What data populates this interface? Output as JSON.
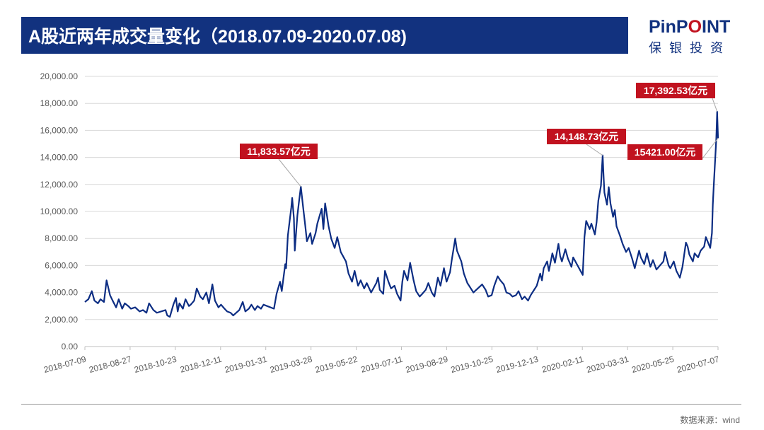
{
  "header": {
    "title": "A股近两年成交量变化（2018.07.09-2020.07.08)"
  },
  "logo": {
    "name": "PinPOINT",
    "subtitle": "保银投资",
    "color": "#12327f",
    "accent": "#c1121f"
  },
  "footer": {
    "source": "数据来源：wind"
  },
  "chart_data": {
    "type": "line",
    "title": "",
    "xlabel": "",
    "ylabel": "",
    "x_range": [
      "2018-07-09",
      "2020-07-08"
    ],
    "ylim": [
      0,
      20000
    ],
    "y_ticks": [
      0,
      2000,
      4000,
      6000,
      8000,
      10000,
      12000,
      14000,
      16000,
      18000,
      20000
    ],
    "y_tick_labels": [
      "0.00",
      "2,000.00",
      "4,000.00",
      "6,000.00",
      "8,000.00",
      "10,000.00",
      "12,000.00",
      "14,000.00",
      "16,000.00",
      "18,000.00",
      "20,000.00"
    ],
    "x_tick_labels": [
      "2018-07-09",
      "2018-08-27",
      "2018-10-23",
      "2018-12-11",
      "2019-01-31",
      "2019-03-28",
      "2019-05-22",
      "2019-07-11",
      "2019-08-29",
      "2019-10-25",
      "2019-12-13",
      "2020-02-11",
      "2020-03-31",
      "2020-05-25",
      "2020-07-07"
    ],
    "grid": true,
    "legend": "none",
    "series": [
      {
        "color": "#0c2d83",
        "points": [
          [
            "2018-07-09",
            3300
          ],
          [
            "2018-07-13",
            3500
          ],
          [
            "2018-07-17",
            4100
          ],
          [
            "2018-07-20",
            3400
          ],
          [
            "2018-07-24",
            3200
          ],
          [
            "2018-07-27",
            3500
          ],
          [
            "2018-07-31",
            3300
          ],
          [
            "2018-08-03",
            4900
          ],
          [
            "2018-08-07",
            3800
          ],
          [
            "2018-08-10",
            3400
          ],
          [
            "2018-08-14",
            2900
          ],
          [
            "2018-08-17",
            3500
          ],
          [
            "2018-08-21",
            2800
          ],
          [
            "2018-08-24",
            3200
          ],
          [
            "2018-08-28",
            3000
          ],
          [
            "2018-08-31",
            2800
          ],
          [
            "2018-09-05",
            2900
          ],
          [
            "2018-09-10",
            2600
          ],
          [
            "2018-09-14",
            2700
          ],
          [
            "2018-09-18",
            2500
          ],
          [
            "2018-09-21",
            3200
          ],
          [
            "2018-09-26",
            2700
          ],
          [
            "2018-09-30",
            2500
          ],
          [
            "2018-10-10",
            2700
          ],
          [
            "2018-10-12",
            2300
          ],
          [
            "2018-10-15",
            2200
          ],
          [
            "2018-10-19",
            3100
          ],
          [
            "2018-10-22",
            3600
          ],
          [
            "2018-10-24",
            2600
          ],
          [
            "2018-10-26",
            3200
          ],
          [
            "2018-10-30",
            2800
          ],
          [
            "2018-11-02",
            3500
          ],
          [
            "2018-11-06",
            3000
          ],
          [
            "2018-11-08",
            3100
          ],
          [
            "2018-11-12",
            3400
          ],
          [
            "2018-11-15",
            4300
          ],
          [
            "2018-11-19",
            3700
          ],
          [
            "2018-11-22",
            3500
          ],
          [
            "2018-11-26",
            4000
          ],
          [
            "2018-11-29",
            3200
          ],
          [
            "2018-12-03",
            4600
          ],
          [
            "2018-12-06",
            3400
          ],
          [
            "2018-12-10",
            2900
          ],
          [
            "2018-12-13",
            3100
          ],
          [
            "2018-12-17",
            2800
          ],
          [
            "2018-12-20",
            2600
          ],
          [
            "2018-12-24",
            2500
          ],
          [
            "2018-12-27",
            2300
          ],
          [
            "2019-01-03",
            2700
          ],
          [
            "2019-01-07",
            3300
          ],
          [
            "2019-01-10",
            2600
          ],
          [
            "2019-01-14",
            2800
          ],
          [
            "2019-01-17",
            3100
          ],
          [
            "2019-01-21",
            2700
          ],
          [
            "2019-01-24",
            3000
          ],
          [
            "2019-01-28",
            2800
          ],
          [
            "2019-01-31",
            3100
          ],
          [
            "2019-02-12",
            2800
          ],
          [
            "2019-02-15",
            3900
          ],
          [
            "2019-02-19",
            4800
          ],
          [
            "2019-02-21",
            4100
          ],
          [
            "2019-02-25",
            6100
          ],
          [
            "2019-02-26",
            5800
          ],
          [
            "2019-02-28",
            8200
          ],
          [
            "2019-03-04",
            10300
          ],
          [
            "2019-03-05",
            11000
          ],
          [
            "2019-03-07",
            9500
          ],
          [
            "2019-03-08",
            7100
          ],
          [
            "2019-03-11",
            9700
          ],
          [
            "2019-03-13",
            10800
          ],
          [
            "2019-03-15",
            11834
          ],
          [
            "2019-03-18",
            10100
          ],
          [
            "2019-03-20",
            9000
          ],
          [
            "2019-03-22",
            7800
          ],
          [
            "2019-03-26",
            8400
          ],
          [
            "2019-03-28",
            7600
          ],
          [
            "2019-04-01",
            8400
          ],
          [
            "2019-04-03",
            9100
          ],
          [
            "2019-04-08",
            10200
          ],
          [
            "2019-04-10",
            8700
          ],
          [
            "2019-04-12",
            10600
          ],
          [
            "2019-04-16",
            8900
          ],
          [
            "2019-04-19",
            8000
          ],
          [
            "2019-04-23",
            7300
          ],
          [
            "2019-04-26",
            8100
          ],
          [
            "2019-04-30",
            7000
          ],
          [
            "2019-05-06",
            6300
          ],
          [
            "2019-05-09",
            5400
          ],
          [
            "2019-05-13",
            4800
          ],
          [
            "2019-05-16",
            5600
          ],
          [
            "2019-05-20",
            4500
          ],
          [
            "2019-05-23",
            4900
          ],
          [
            "2019-05-27",
            4300
          ],
          [
            "2019-05-30",
            4700
          ],
          [
            "2019-06-04",
            4000
          ],
          [
            "2019-06-10",
            4700
          ],
          [
            "2019-06-12",
            5100
          ],
          [
            "2019-06-14",
            4200
          ],
          [
            "2019-06-18",
            3900
          ],
          [
            "2019-06-20",
            5600
          ],
          [
            "2019-06-24",
            4800
          ],
          [
            "2019-06-27",
            4300
          ],
          [
            "2019-07-01",
            4500
          ],
          [
            "2019-07-04",
            3900
          ],
          [
            "2019-07-08",
            3400
          ],
          [
            "2019-07-10",
            4800
          ],
          [
            "2019-07-12",
            5600
          ],
          [
            "2019-07-16",
            4900
          ],
          [
            "2019-07-19",
            6200
          ],
          [
            "2019-07-23",
            4900
          ],
          [
            "2019-07-26",
            4100
          ],
          [
            "2019-07-30",
            3700
          ],
          [
            "2019-08-02",
            3900
          ],
          [
            "2019-08-06",
            4200
          ],
          [
            "2019-08-09",
            4700
          ],
          [
            "2019-08-13",
            4000
          ],
          [
            "2019-08-16",
            3700
          ],
          [
            "2019-08-20",
            5100
          ],
          [
            "2019-08-23",
            4500
          ],
          [
            "2019-08-27",
            5800
          ],
          [
            "2019-08-30",
            4800
          ],
          [
            "2019-09-03",
            5500
          ],
          [
            "2019-09-05",
            6400
          ],
          [
            "2019-09-09",
            8000
          ],
          [
            "2019-09-11",
            7100
          ],
          [
            "2019-09-16",
            6300
          ],
          [
            "2019-09-19",
            5400
          ],
          [
            "2019-09-23",
            4700
          ],
          [
            "2019-09-26",
            4400
          ],
          [
            "2019-09-30",
            4000
          ],
          [
            "2019-10-10",
            4600
          ],
          [
            "2019-10-14",
            4200
          ],
          [
            "2019-10-17",
            3700
          ],
          [
            "2019-10-21",
            3800
          ],
          [
            "2019-10-24",
            4500
          ],
          [
            "2019-10-28",
            5200
          ],
          [
            "2019-10-31",
            4900
          ],
          [
            "2019-11-04",
            4600
          ],
          [
            "2019-11-07",
            4000
          ],
          [
            "2019-11-11",
            3900
          ],
          [
            "2019-11-14",
            3700
          ],
          [
            "2019-11-18",
            3800
          ],
          [
            "2019-11-21",
            4100
          ],
          [
            "2019-11-25",
            3500
          ],
          [
            "2019-11-28",
            3700
          ],
          [
            "2019-12-02",
            3400
          ],
          [
            "2019-12-05",
            3800
          ],
          [
            "2019-12-09",
            4200
          ],
          [
            "2019-12-12",
            4500
          ],
          [
            "2019-12-16",
            5400
          ],
          [
            "2019-12-18",
            4900
          ],
          [
            "2019-12-20",
            5800
          ],
          [
            "2019-12-24",
            6300
          ],
          [
            "2019-12-26",
            5600
          ],
          [
            "2019-12-30",
            6900
          ],
          [
            "2020-01-02",
            6200
          ],
          [
            "2020-01-06",
            7600
          ],
          [
            "2020-01-08",
            6700
          ],
          [
            "2020-01-10",
            6300
          ],
          [
            "2020-01-14",
            7200
          ],
          [
            "2020-01-17",
            6500
          ],
          [
            "2020-01-21",
            5900
          ],
          [
            "2020-01-23",
            6600
          ],
          [
            "2020-02-03",
            5300
          ],
          [
            "2020-02-05",
            8100
          ],
          [
            "2020-02-07",
            9300
          ],
          [
            "2020-02-11",
            8700
          ],
          [
            "2020-02-13",
            9100
          ],
          [
            "2020-02-17",
            8300
          ],
          [
            "2020-02-19",
            9200
          ],
          [
            "2020-02-21",
            10800
          ],
          [
            "2020-02-24",
            11900
          ],
          [
            "2020-02-26",
            14149
          ],
          [
            "2020-02-27",
            12700
          ],
          [
            "2020-02-28",
            11400
          ],
          [
            "2020-03-02",
            10500
          ],
          [
            "2020-03-04",
            11800
          ],
          [
            "2020-03-06",
            10600
          ],
          [
            "2020-03-09",
            9600
          ],
          [
            "2020-03-11",
            10100
          ],
          [
            "2020-03-13",
            8900
          ],
          [
            "2020-03-17",
            8200
          ],
          [
            "2020-03-20",
            7600
          ],
          [
            "2020-03-24",
            7000
          ],
          [
            "2020-03-27",
            7300
          ],
          [
            "2020-03-31",
            6500
          ],
          [
            "2020-04-03",
            5800
          ],
          [
            "2020-04-08",
            7100
          ],
          [
            "2020-04-10",
            6600
          ],
          [
            "2020-04-14",
            6100
          ],
          [
            "2020-04-17",
            6900
          ],
          [
            "2020-04-21",
            5900
          ],
          [
            "2020-04-24",
            6400
          ],
          [
            "2020-04-28",
            5700
          ],
          [
            "2020-05-06",
            6300
          ],
          [
            "2020-05-08",
            7000
          ],
          [
            "2020-05-12",
            6000
          ],
          [
            "2020-05-14",
            5800
          ],
          [
            "2020-05-18",
            6300
          ],
          [
            "2020-05-21",
            5600
          ],
          [
            "2020-05-25",
            5100
          ],
          [
            "2020-05-28",
            5900
          ],
          [
            "2020-06-01",
            7700
          ],
          [
            "2020-06-03",
            7400
          ],
          [
            "2020-06-05",
            6800
          ],
          [
            "2020-06-09",
            6300
          ],
          [
            "2020-06-11",
            6900
          ],
          [
            "2020-06-15",
            6600
          ],
          [
            "2020-06-18",
            7100
          ],
          [
            "2020-06-22",
            7400
          ],
          [
            "2020-06-24",
            8100
          ],
          [
            "2020-06-29",
            7300
          ],
          [
            "2020-07-01",
            8400
          ],
          [
            "2020-07-02",
            10500
          ],
          [
            "2020-07-03",
            11800
          ],
          [
            "2020-07-06",
            15390
          ],
          [
            "2020-07-07",
            17393
          ],
          [
            "2020-07-08",
            15421
          ]
        ]
      }
    ],
    "annotations": [
      {
        "text": "11,833.57亿元",
        "x": "2019-03-15",
        "y": 11833.57,
        "box_color": "#c1121f"
      },
      {
        "text": "14,148.73亿元",
        "x": "2020-02-26",
        "y": 14148.73,
        "box_color": "#c1121f"
      },
      {
        "text": "17,392.53亿元",
        "x": "2020-07-07",
        "y": 17392.53,
        "box_color": "#c1121f"
      },
      {
        "text": "15421.00亿元",
        "x": "2020-07-08",
        "y": 15421.0,
        "box_color": "#c1121f"
      }
    ]
  }
}
